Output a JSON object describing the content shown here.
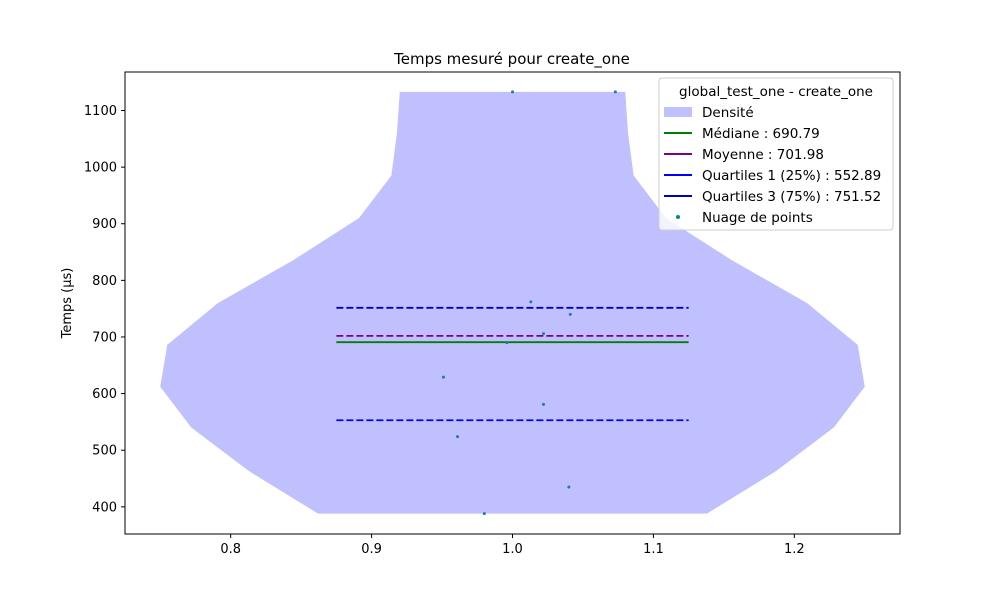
{
  "chart_data": {
    "type": "violin",
    "title": "Temps mesuré pour create_one",
    "xlabel": "",
    "ylabel": "Temps (µs)",
    "xlim": [
      0.725,
      1.275
    ],
    "ylim": [
      352,
      1168
    ],
    "x_ticks": [
      {
        "value": 0.8,
        "label": "0.8"
      },
      {
        "value": 0.9,
        "label": "0.9"
      },
      {
        "value": 1.0,
        "label": "1.0"
      },
      {
        "value": 1.1,
        "label": "1.1"
      },
      {
        "value": 1.2,
        "label": "1.2"
      }
    ],
    "y_ticks": [
      {
        "value": 400,
        "label": "400"
      },
      {
        "value": 500,
        "label": "500"
      },
      {
        "value": 600,
        "label": "600"
      },
      {
        "value": 700,
        "label": "700"
      },
      {
        "value": 800,
        "label": "800"
      },
      {
        "value": 900,
        "label": "900"
      },
      {
        "value": 1000,
        "label": "1000"
      },
      {
        "value": 1100,
        "label": "1100"
      }
    ],
    "violin": {
      "center": 1.0,
      "color": "#c0c0ff",
      "profile": [
        {
          "y": 388,
          "half_width": 0.138
        },
        {
          "y": 463,
          "half_width": 0.187
        },
        {
          "y": 540,
          "half_width": 0.228
        },
        {
          "y": 612,
          "half_width": 0.25
        },
        {
          "y": 686,
          "half_width": 0.245
        },
        {
          "y": 760,
          "half_width": 0.209
        },
        {
          "y": 835,
          "half_width": 0.156
        },
        {
          "y": 910,
          "half_width": 0.109
        },
        {
          "y": 985,
          "half_width": 0.086
        },
        {
          "y": 1060,
          "half_width": 0.082
        },
        {
          "y": 1133,
          "half_width": 0.08
        }
      ]
    },
    "lines": [
      {
        "name": "Médiane",
        "value": 690.79,
        "color": "#008000",
        "style": "solid",
        "x_range": [
          0.875,
          1.125
        ]
      },
      {
        "name": "Moyenne",
        "value": 701.98,
        "color": "#800080",
        "style": "dashed",
        "x_range": [
          0.875,
          1.125
        ]
      },
      {
        "name": "Quartiles 1 (25%)",
        "value": 552.89,
        "color": "#0000ff",
        "style": "dashed",
        "x_range": [
          0.875,
          1.125
        ]
      },
      {
        "name": "Quartiles 3 (75%)",
        "value": 751.52,
        "color": "#0000c0",
        "style": "dashed",
        "x_range": [
          0.875,
          1.125
        ]
      }
    ],
    "points": {
      "color": "#1f77b4",
      "values": [
        {
          "x": 1.0,
          "y": 1133
        },
        {
          "x": 1.073,
          "y": 1133
        },
        {
          "x": 1.013,
          "y": 762
        },
        {
          "x": 1.041,
          "y": 740
        },
        {
          "x": 1.022,
          "y": 706
        },
        {
          "x": 0.996,
          "y": 690
        },
        {
          "x": 0.951,
          "y": 629
        },
        {
          "x": 1.022,
          "y": 581
        },
        {
          "x": 0.961,
          "y": 524
        },
        {
          "x": 1.04,
          "y": 435
        },
        {
          "x": 0.98,
          "y": 388
        }
      ]
    },
    "legend": {
      "title": "global_test_one - create_one",
      "placement": "top-right",
      "entries": [
        {
          "label": "Densité",
          "kind": "patch",
          "color": "#c0c0ff"
        },
        {
          "label": "Médiane : 690.79",
          "kind": "line",
          "color": "#008000"
        },
        {
          "label": "Moyenne : 701.98",
          "kind": "line",
          "color": "#800080"
        },
        {
          "label": "Quartiles 1 (25%) : 552.89",
          "kind": "line",
          "color": "#0000ff"
        },
        {
          "label": "Quartiles 3 (75%) : 751.52",
          "kind": "line",
          "color": "#0000c0"
        },
        {
          "label": "Nuage de points",
          "kind": "marker",
          "color": "#008b8b"
        }
      ]
    }
  }
}
